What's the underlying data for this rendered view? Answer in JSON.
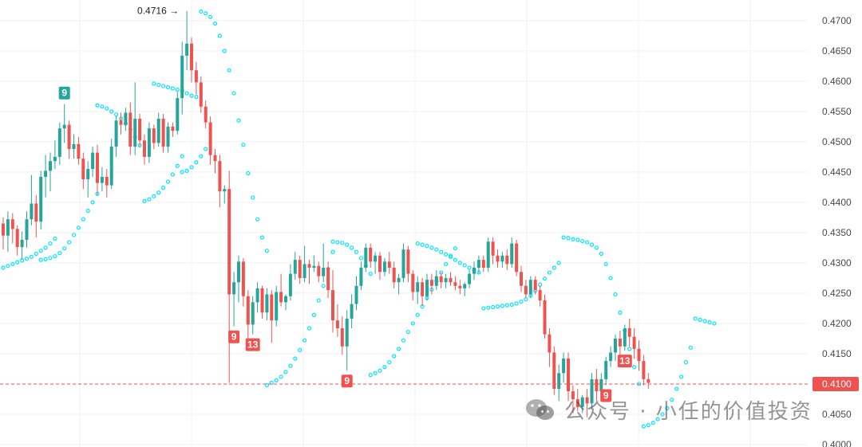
{
  "colors": {
    "up": "#26a69a",
    "down": "#ef5350",
    "sar": "#00e5ff",
    "grid": "#f0f0f0",
    "price_line": "#ef5350",
    "badge_green": "#26a69a",
    "badge_red": "#ef5350"
  },
  "watermark": {
    "text": "公众号 · 小任的价值投资",
    "icon": "wechat-icon"
  },
  "chart_data": {
    "type": "candlestick",
    "y_axis_ticks": [
      "0.4700",
      "0.4650",
      "0.4600",
      "0.4550",
      "0.4500",
      "0.4450",
      "0.4400",
      "0.4350",
      "0.4300",
      "0.4250",
      "0.4200",
      "0.4150",
      "0.4100",
      "0.4050",
      "0.4000"
    ],
    "ylim": [
      0.3996,
      0.4734
    ],
    "current_price": {
      "label": "0.4100",
      "value": 0.41
    },
    "max_marker": {
      "label": "0.4716",
      "value": 0.4716
    },
    "badges": [
      {
        "text": "9",
        "kind": "green",
        "bar": 13,
        "place": "above"
      },
      {
        "text": "9",
        "kind": "red",
        "bar": 49,
        "place": "below"
      },
      {
        "text": "13",
        "kind": "red",
        "bar": 53,
        "place": "below"
      },
      {
        "text": "9",
        "kind": "red",
        "bar": 73,
        "place": "below"
      },
      {
        "text": "9",
        "kind": "red",
        "bar": 128,
        "place": "below"
      },
      {
        "text": "13",
        "kind": "red",
        "bar": 132,
        "place": "below"
      }
    ],
    "candles": [
      [
        0.4365,
        0.4375,
        0.4322,
        0.4345
      ],
      [
        0.4345,
        0.4385,
        0.4318,
        0.4372
      ],
      [
        0.4372,
        0.4382,
        0.4332,
        0.4356
      ],
      [
        0.4356,
        0.4362,
        0.4312,
        0.4326
      ],
      [
        0.4326,
        0.4352,
        0.4305,
        0.4338
      ],
      [
        0.4338,
        0.4385,
        0.4325,
        0.4372
      ],
      [
        0.4372,
        0.4445,
        0.4362,
        0.4398
      ],
      [
        0.4398,
        0.4412,
        0.4342,
        0.4368
      ],
      [
        0.4368,
        0.4452,
        0.4355,
        0.4442
      ],
      [
        0.4442,
        0.4478,
        0.4408,
        0.4452
      ],
      [
        0.4452,
        0.4482,
        0.4418,
        0.4468
      ],
      [
        0.4468,
        0.4502,
        0.4455,
        0.4475
      ],
      [
        0.4475,
        0.4532,
        0.4462,
        0.4522
      ],
      [
        0.4522,
        0.4562,
        0.4498,
        0.4528
      ],
      [
        0.4528,
        0.4535,
        0.4472,
        0.4488
      ],
      [
        0.4488,
        0.4512,
        0.4472,
        0.4496
      ],
      [
        0.4496,
        0.4508,
        0.4462,
        0.4472
      ],
      [
        0.4472,
        0.4482,
        0.4422,
        0.4438
      ],
      [
        0.4438,
        0.4468,
        0.4408,
        0.4455
      ],
      [
        0.4455,
        0.4492,
        0.4442,
        0.4482
      ],
      [
        0.4482,
        0.4495,
        0.4412,
        0.4432
      ],
      [
        0.4432,
        0.4458,
        0.4418,
        0.4442
      ],
      [
        0.4442,
        0.4455,
        0.4408,
        0.4428
      ],
      [
        0.4428,
        0.4505,
        0.4422,
        0.4492
      ],
      [
        0.4492,
        0.4542,
        0.4475,
        0.4535
      ],
      [
        0.4535,
        0.4548,
        0.4512,
        0.4528
      ],
      [
        0.4528,
        0.4556,
        0.4518,
        0.4548
      ],
      [
        0.4548,
        0.4565,
        0.4478,
        0.4492
      ],
      [
        0.4492,
        0.4598,
        0.4478,
        0.4538
      ],
      [
        0.4538,
        0.4546,
        0.4492,
        0.4502
      ],
      [
        0.4502,
        0.4512,
        0.4462,
        0.4475
      ],
      [
        0.4475,
        0.4532,
        0.4465,
        0.4522
      ],
      [
        0.4522,
        0.4528,
        0.4488,
        0.4498
      ],
      [
        0.4498,
        0.4548,
        0.4492,
        0.4538
      ],
      [
        0.4538,
        0.4546,
        0.4482,
        0.4492
      ],
      [
        0.4492,
        0.4532,
        0.4482,
        0.4525
      ],
      [
        0.4525,
        0.4532,
        0.4508,
        0.4518
      ],
      [
        0.4518,
        0.4582,
        0.4512,
        0.4572
      ],
      [
        0.4572,
        0.4665,
        0.4545,
        0.4642
      ],
      [
        0.4642,
        0.4716,
        0.4618,
        0.4662
      ],
      [
        0.4662,
        0.4672,
        0.4598,
        0.4618
      ],
      [
        0.4618,
        0.4632,
        0.4578,
        0.4598
      ],
      [
        0.4598,
        0.4608,
        0.4548,
        0.4558
      ],
      [
        0.4558,
        0.4568,
        0.4522,
        0.4532
      ],
      [
        0.4532,
        0.4542,
        0.4462,
        0.4478
      ],
      [
        0.4478,
        0.4488,
        0.4448,
        0.4468
      ],
      [
        0.4468,
        0.4478,
        0.4392,
        0.4418
      ],
      [
        0.4418,
        0.4428,
        0.4398,
        0.4422
      ],
      [
        0.4422,
        0.4452,
        0.4102,
        0.4248
      ],
      [
        0.4248,
        0.4285,
        0.4195,
        0.4268
      ],
      [
        0.4268,
        0.4312,
        0.4235,
        0.4302
      ],
      [
        0.4302,
        0.4308,
        0.4228,
        0.4245
      ],
      [
        0.4245,
        0.4255,
        0.4175,
        0.4198
      ],
      [
        0.4198,
        0.4245,
        0.4182,
        0.4235
      ],
      [
        0.4235,
        0.4268,
        0.4218,
        0.4258
      ],
      [
        0.4258,
        0.4262,
        0.4208,
        0.4218
      ],
      [
        0.4218,
        0.4258,
        0.4205,
        0.4248
      ],
      [
        0.4248,
        0.4255,
        0.4168,
        0.4205
      ],
      [
        0.4205,
        0.4262,
        0.4195,
        0.4252
      ],
      [
        0.4252,
        0.4282,
        0.4228,
        0.4235
      ],
      [
        0.4235,
        0.4248,
        0.4222,
        0.4245
      ],
      [
        0.4245,
        0.4298,
        0.4238,
        0.4282
      ],
      [
        0.4282,
        0.4318,
        0.4272,
        0.4305
      ],
      [
        0.4305,
        0.4312,
        0.4265,
        0.4275
      ],
      [
        0.4275,
        0.4328,
        0.4268,
        0.4298
      ],
      [
        0.4298,
        0.4305,
        0.4265,
        0.4292
      ],
      [
        0.4292,
        0.4312,
        0.4285,
        0.4295
      ],
      [
        0.4295,
        0.4302,
        0.4268,
        0.4278
      ],
      [
        0.4278,
        0.4332,
        0.4268,
        0.4292
      ],
      [
        0.4292,
        0.4302,
        0.4242,
        0.4255
      ],
      [
        0.4255,
        0.4288,
        0.4185,
        0.4205
      ],
      [
        0.4205,
        0.4232,
        0.4178,
        0.4192
      ],
      [
        0.4192,
        0.4212,
        0.4148,
        0.4162
      ],
      [
        0.4162,
        0.4222,
        0.4122,
        0.4208
      ],
      [
        0.4208,
        0.4248,
        0.4192,
        0.4232
      ],
      [
        0.4232,
        0.4278,
        0.4222,
        0.4262
      ],
      [
        0.4262,
        0.4302,
        0.4255,
        0.4292
      ],
      [
        0.4292,
        0.4332,
        0.4285,
        0.4325
      ],
      [
        0.4325,
        0.4332,
        0.4292,
        0.4302
      ],
      [
        0.4302,
        0.4318,
        0.4282,
        0.4312
      ],
      [
        0.4312,
        0.4318,
        0.4272,
        0.4285
      ],
      [
        0.4285,
        0.4308,
        0.4278,
        0.4302
      ],
      [
        0.4302,
        0.4318,
        0.4282,
        0.4292
      ],
      [
        0.4292,
        0.4302,
        0.4258,
        0.4268
      ],
      [
        0.4268,
        0.4282,
        0.4248,
        0.4275
      ],
      [
        0.4275,
        0.4332,
        0.4268,
        0.4322
      ],
      [
        0.4322,
        0.4328,
        0.4268,
        0.4282
      ],
      [
        0.4282,
        0.4288,
        0.4238,
        0.4252
      ],
      [
        0.4252,
        0.4278,
        0.4232,
        0.4268
      ],
      [
        0.4268,
        0.4275,
        0.4228,
        0.4245
      ],
      [
        0.4245,
        0.4282,
        0.4238,
        0.4272
      ],
      [
        0.4272,
        0.4282,
        0.4248,
        0.4262
      ],
      [
        0.4262,
        0.4288,
        0.4255,
        0.4278
      ],
      [
        0.4278,
        0.4285,
        0.4258,
        0.4268
      ],
      [
        0.4268,
        0.4282,
        0.4258,
        0.4275
      ],
      [
        0.4275,
        0.4285,
        0.4262,
        0.4268
      ],
      [
        0.4268,
        0.4278,
        0.4255,
        0.4262
      ],
      [
        0.4262,
        0.4272,
        0.4248,
        0.4258
      ],
      [
        0.4258,
        0.4268,
        0.4245,
        0.4265
      ],
      [
        0.4265,
        0.4288,
        0.4258,
        0.4282
      ],
      [
        0.4282,
        0.4302,
        0.4272,
        0.4292
      ],
      [
        0.4292,
        0.4312,
        0.4282,
        0.4305
      ],
      [
        0.4305,
        0.4312,
        0.4285,
        0.4292
      ],
      [
        0.4292,
        0.4342,
        0.4285,
        0.4335
      ],
      [
        0.4335,
        0.4342,
        0.4298,
        0.4312
      ],
      [
        0.4312,
        0.4322,
        0.4292,
        0.4302
      ],
      [
        0.4302,
        0.4318,
        0.4292,
        0.4312
      ],
      [
        0.4312,
        0.4322,
        0.4288,
        0.4298
      ],
      [
        0.4298,
        0.4342,
        0.4292,
        0.4332
      ],
      [
        0.4332,
        0.4338,
        0.4278,
        0.4285
      ],
      [
        0.4285,
        0.4295,
        0.4252,
        0.4262
      ],
      [
        0.4262,
        0.4272,
        0.4242,
        0.4248
      ],
      [
        0.4248,
        0.4278,
        0.4242,
        0.4272
      ],
      [
        0.4272,
        0.4278,
        0.4248,
        0.4255
      ],
      [
        0.4255,
        0.4262,
        0.4228,
        0.4238
      ],
      [
        0.4238,
        0.4248,
        0.4175,
        0.4182
      ],
      [
        0.4182,
        0.4192,
        0.4128,
        0.4152
      ],
      [
        0.4152,
        0.4162,
        0.4082,
        0.4092
      ],
      [
        0.4092,
        0.4132,
        0.4072,
        0.4118
      ],
      [
        0.4118,
        0.4152,
        0.4102,
        0.4142
      ],
      [
        0.4142,
        0.4152,
        0.4072,
        0.4088
      ],
      [
        0.4088,
        0.4098,
        0.4052,
        0.4075
      ],
      [
        0.4075,
        0.4092,
        0.4055,
        0.4062
      ],
      [
        0.4062,
        0.4082,
        0.4052,
        0.4078
      ],
      [
        0.4078,
        0.4092,
        0.4045,
        0.4068
      ],
      [
        0.4068,
        0.4118,
        0.4058,
        0.4108
      ],
      [
        0.4108,
        0.4125,
        0.4072,
        0.4088
      ],
      [
        0.4088,
        0.4118,
        0.4078,
        0.4108
      ],
      [
        0.4108,
        0.4145,
        0.4098,
        0.4138
      ],
      [
        0.4138,
        0.4162,
        0.4128,
        0.4152
      ],
      [
        0.4152,
        0.4182,
        0.4138,
        0.4175
      ],
      [
        0.4175,
        0.4188,
        0.4142,
        0.4162
      ],
      [
        0.4162,
        0.4198,
        0.4155,
        0.4192
      ],
      [
        0.4192,
        0.4208,
        0.4162,
        0.4178
      ],
      [
        0.4178,
        0.4192,
        0.4142,
        0.4158
      ],
      [
        0.4158,
        0.4172,
        0.4122,
        0.4138
      ],
      [
        0.4138,
        0.4148,
        0.4098,
        0.4108
      ],
      [
        0.4108,
        0.4118,
        0.4092,
        0.4102
      ]
    ],
    "sar_segments": [
      {
        "start": 0,
        "values": [
          0.4292,
          0.4295,
          0.4298,
          0.4301,
          0.4304,
          0.4307,
          0.431,
          0.4315,
          0.432,
          0.4325,
          0.4332,
          0.434
        ]
      },
      {
        "start": 8,
        "values": [
          0.4305,
          0.4306,
          0.4308,
          0.4311,
          0.4316,
          0.4324,
          0.4334,
          0.4346,
          0.4358,
          0.4372,
          0.4386,
          0.44,
          0.4414
        ]
      },
      {
        "start": 20,
        "values": [
          0.456,
          0.4558,
          0.4555,
          0.455,
          0.4545,
          0.4538,
          0.453,
          0.452,
          0.4508,
          0.4494
        ]
      },
      {
        "start": 30,
        "values": [
          0.4402,
          0.4405,
          0.441,
          0.4416,
          0.4424,
          0.4434,
          0.4446,
          0.446,
          0.4476
        ]
      },
      {
        "start": 32,
        "values": [
          0.4596,
          0.4594,
          0.4592,
          0.459,
          0.4588,
          0.4586,
          0.4584,
          0.458,
          0.4576,
          0.4574
        ]
      },
      {
        "start": 38,
        "values": [
          0.445,
          0.4452,
          0.4458,
          0.4466,
          0.4476,
          0.4488
        ]
      },
      {
        "start": 42,
        "values": [
          0.4715,
          0.4712,
          0.4706,
          0.4695,
          0.4675,
          0.465,
          0.4618,
          0.458,
          0.4535,
          0.4495,
          0.4448,
          0.4408,
          0.4372,
          0.4342,
          0.432
        ]
      },
      {
        "start": 56,
        "values": [
          0.4098,
          0.4102,
          0.4106,
          0.4112,
          0.412,
          0.413,
          0.4142,
          0.4156,
          0.4172,
          0.4192,
          0.4214,
          0.4238,
          0.4262,
          0.429,
          0.4318
        ]
      },
      {
        "start": 70,
        "values": [
          0.4335,
          0.4334,
          0.4333,
          0.433,
          0.4325,
          0.4318,
          0.4308,
          0.4295,
          0.4282
        ]
      },
      {
        "start": 78,
        "values": [
          0.4115,
          0.4118,
          0.4122,
          0.4128,
          0.4136,
          0.4146,
          0.4158,
          0.4172,
          0.4186,
          0.42,
          0.4214,
          0.4228,
          0.4242,
          0.4256,
          0.427,
          0.4284,
          0.4298,
          0.4312,
          0.4324
        ]
      },
      {
        "start": 88,
        "values": [
          0.4332,
          0.433,
          0.4328,
          0.4325,
          0.4322,
          0.4318,
          0.4314,
          0.431,
          0.4305,
          0.43,
          0.4296,
          0.4292,
          0.4288,
          0.4284
        ]
      },
      {
        "start": 102,
        "values": [
          0.4225,
          0.4226,
          0.4227,
          0.4228,
          0.4229,
          0.423,
          0.4231,
          0.4233,
          0.4236,
          0.424,
          0.4246,
          0.4254,
          0.4264,
          0.4274,
          0.4284,
          0.4292,
          0.43
        ]
      },
      {
        "start": 119,
        "values": [
          0.4342,
          0.4341,
          0.4339,
          0.4338,
          0.4336,
          0.4334,
          0.433,
          0.4325,
          0.4315,
          0.4298,
          0.4275,
          0.4248,
          0.4218,
          0.4188,
          0.4158,
          0.4128,
          0.41
        ]
      },
      {
        "start": 136,
        "values": [
          0.403,
          0.4032,
          0.4036,
          0.4042,
          0.405,
          0.406,
          0.4074,
          0.4092,
          0.4112,
          0.4136,
          0.416
        ]
      },
      {
        "start": 147,
        "values": [
          0.4208,
          0.4206,
          0.4204,
          0.4202,
          0.42
        ]
      }
    ]
  }
}
